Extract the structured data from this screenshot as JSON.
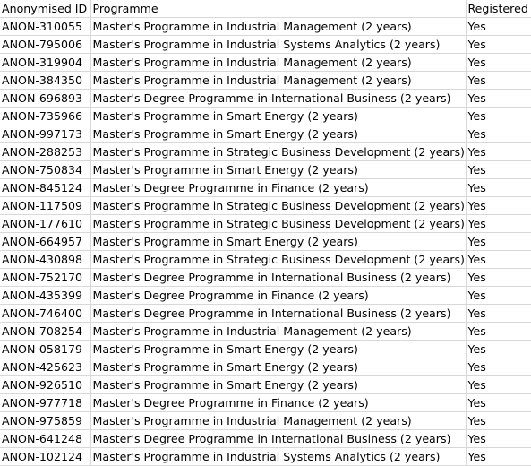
{
  "table": {
    "headers": {
      "id": "Anonymised ID",
      "programme": "Programme",
      "registered": "Registered"
    },
    "rows": [
      {
        "id": "ANON-310055",
        "programme": "Master's Programme in Industrial Management (2 years)",
        "registered": "Yes"
      },
      {
        "id": "ANON-795006",
        "programme": "Master's Programme in Industrial Systems Analytics (2 years)",
        "registered": "Yes"
      },
      {
        "id": "ANON-319904",
        "programme": "Master's Programme in Industrial Management (2 years)",
        "registered": "Yes"
      },
      {
        "id": "ANON-384350",
        "programme": "Master's Programme in Industrial Management (2 years)",
        "registered": "Yes"
      },
      {
        "id": "ANON-696893",
        "programme": "Master's Degree Programme in International Business (2 years)",
        "registered": "Yes"
      },
      {
        "id": "ANON-735966",
        "programme": "Master's Programme in Smart Energy (2 years)",
        "registered": "Yes"
      },
      {
        "id": "ANON-997173",
        "programme": "Master's Programme in Smart Energy (2 years)",
        "registered": "Yes"
      },
      {
        "id": "ANON-288253",
        "programme": "Master's Programme in Strategic Business Development (2 years)",
        "registered": "Yes"
      },
      {
        "id": "ANON-750834",
        "programme": "Master's Programme in Smart Energy (2 years)",
        "registered": "Yes"
      },
      {
        "id": "ANON-845124",
        "programme": "Master's Degree Programme in Finance (2 years)",
        "registered": "Yes"
      },
      {
        "id": "ANON-117509",
        "programme": "Master's Programme in Strategic Business Development (2 years)",
        "registered": "Yes"
      },
      {
        "id": "ANON-177610",
        "programme": "Master's Programme in Strategic Business Development (2 years)",
        "registered": "Yes"
      },
      {
        "id": "ANON-664957",
        "programme": "Master's Programme in Smart Energy (2 years)",
        "registered": "Yes"
      },
      {
        "id": "ANON-430898",
        "programme": "Master's Programme in Strategic Business Development (2 years)",
        "registered": "Yes"
      },
      {
        "id": "ANON-752170",
        "programme": "Master's Degree Programme in International Business (2 years)",
        "registered": "Yes"
      },
      {
        "id": "ANON-435399",
        "programme": "Master's Degree Programme in Finance (2 years)",
        "registered": "Yes"
      },
      {
        "id": "ANON-746400",
        "programme": "Master's Degree Programme in International Business (2 years)",
        "registered": "Yes"
      },
      {
        "id": "ANON-708254",
        "programme": "Master's Programme in Industrial Management (2 years)",
        "registered": "Yes"
      },
      {
        "id": "ANON-058179",
        "programme": "Master's Programme in Smart Energy (2 years)",
        "registered": "Yes"
      },
      {
        "id": "ANON-425623",
        "programme": "Master's Programme in Smart Energy (2 years)",
        "registered": "Yes"
      },
      {
        "id": "ANON-926510",
        "programme": "Master's Programme in Smart Energy (2 years)",
        "registered": "Yes"
      },
      {
        "id": "ANON-977718",
        "programme": "Master's Degree Programme in Finance (2 years)",
        "registered": "Yes"
      },
      {
        "id": "ANON-975859",
        "programme": "Master's Programme in Industrial Management (2 years)",
        "registered": "Yes"
      },
      {
        "id": "ANON-641248",
        "programme": "Master's Degree Programme in International Business (2 years)",
        "registered": "Yes"
      },
      {
        "id": "ANON-102124",
        "programme": "Master's Programme in Industrial Systems Analytics (2 years)",
        "registered": "Yes"
      }
    ]
  }
}
